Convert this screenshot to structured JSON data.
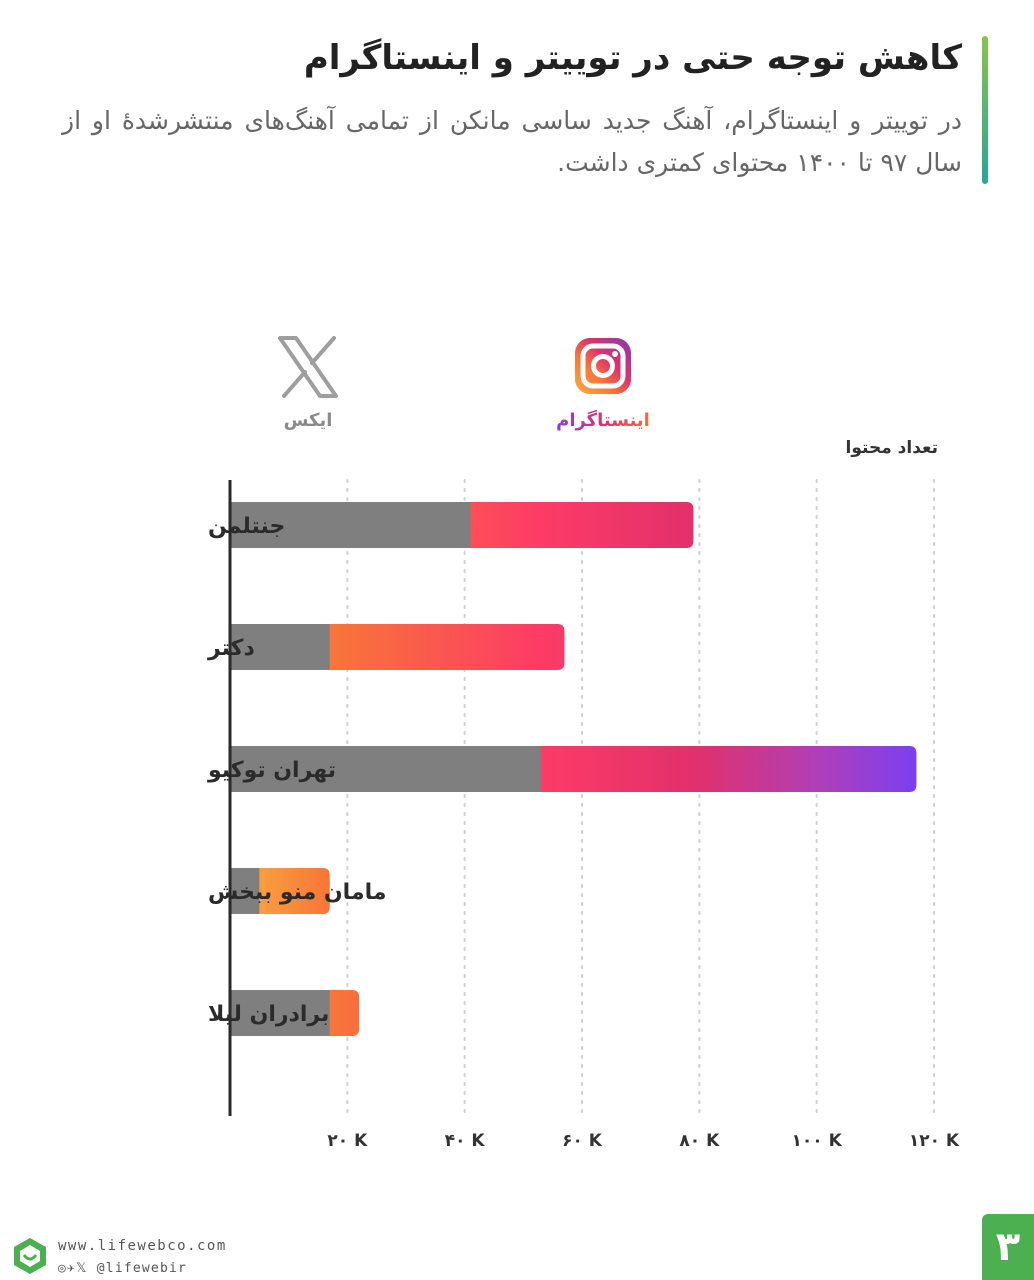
{
  "header": {
    "title": "کاهش توجه حتی در توییتر و اینستاگرام",
    "subtitle": "در توییتر و اینستاگرام، آهنگ جدید ساسی مانکن از تمامی آهنگ‌های منتشرشدهٔ او از سال ۹۷ تا ۱۴۰۰ محتوای کمتری داشت."
  },
  "legend": {
    "x_label": "ایکس",
    "instagram_label": "اینستاگرام"
  },
  "footer": {
    "website": "www.lifewebco.com",
    "social": "@lifewebir",
    "page_number": "۳"
  },
  "colors": {
    "x_bar": "#7f7f7f",
    "instagram_gradient": [
      "#fcaf45",
      "#f77737",
      "#fd1d1d",
      "#e1306c",
      "#833ab4",
      "#7b3ff2"
    ],
    "accent": "#4caf50"
  },
  "chart_data": {
    "type": "bar",
    "orientation": "horizontal",
    "stacked": true,
    "y_title": "تعداد محتوا",
    "categories": [
      "جنتلمن",
      "دکتر",
      "تهران توکیو",
      "مامان منو ببخش",
      "برادران لیلا"
    ],
    "series": [
      {
        "name": "ایکس",
        "values": [
          41000,
          17000,
          53000,
          5000,
          17000
        ]
      },
      {
        "name": "اینستاگرام",
        "values": [
          38000,
          40000,
          64000,
          12000,
          5000
        ]
      }
    ],
    "totals": [
      79000,
      57000,
      117000,
      17000,
      22000
    ],
    "xlim": [
      0,
      120000
    ],
    "tick_values": [
      20000,
      40000,
      60000,
      80000,
      100000,
      120000
    ],
    "tick_labels": [
      "۲۰ K",
      "۴۰ K",
      "۶۰ K",
      "۸۰ K",
      "۱۰۰ K",
      "۱۲۰ K"
    ],
    "grid": true
  }
}
